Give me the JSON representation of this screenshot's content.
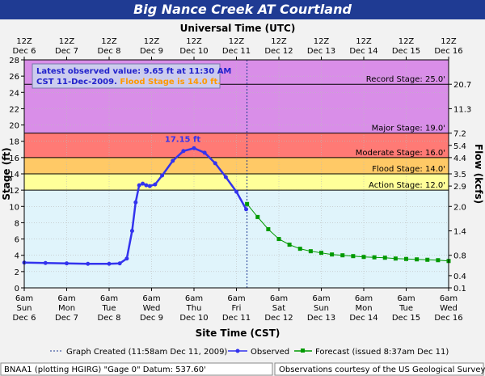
{
  "title": "Big Nance Creek  AT Courtland",
  "chart_data": {
    "type": "line",
    "top_axis": {
      "label": "Universal Time (UTC)",
      "ticks": [
        {
          "x": "2009-12-06T12:00Z",
          "line1": "12Z",
          "line2": "Dec 6"
        },
        {
          "x": "2009-12-07T12:00Z",
          "line1": "12Z",
          "line2": "Dec 7"
        },
        {
          "x": "2009-12-08T12:00Z",
          "line1": "12Z",
          "line2": "Dec 8"
        },
        {
          "x": "2009-12-09T12:00Z",
          "line1": "12Z",
          "line2": "Dec 9"
        },
        {
          "x": "2009-12-10T12:00Z",
          "line1": "12Z",
          "line2": "Dec 10"
        },
        {
          "x": "2009-12-11T12:00Z",
          "line1": "12Z",
          "line2": "Dec 11"
        },
        {
          "x": "2009-12-12T12:00Z",
          "line1": "12Z",
          "line2": "Dec 12"
        },
        {
          "x": "2009-12-13T12:00Z",
          "line1": "12Z",
          "line2": "Dec 13"
        },
        {
          "x": "2009-12-14T12:00Z",
          "line1": "12Z",
          "line2": "Dec 14"
        },
        {
          "x": "2009-12-15T12:00Z",
          "line1": "12Z",
          "line2": "Dec 15"
        },
        {
          "x": "2009-12-16T12:00Z",
          "line1": "12Z",
          "line2": "Dec 16"
        }
      ]
    },
    "bottom_axis": {
      "label": "Site Time (CST)",
      "ticks": [
        {
          "x": "2009-12-06 06:00",
          "line1": "6am",
          "line2": "Sun",
          "line3": "Dec 6"
        },
        {
          "x": "2009-12-07 06:00",
          "line1": "6am",
          "line2": "Mon",
          "line3": "Dec 7"
        },
        {
          "x": "2009-12-08 06:00",
          "line1": "6am",
          "line2": "Tue",
          "line3": "Dec 8"
        },
        {
          "x": "2009-12-09 06:00",
          "line1": "6am",
          "line2": "Wed",
          "line3": "Dec 9"
        },
        {
          "x": "2009-12-10 06:00",
          "line1": "6am",
          "line2": "Thu",
          "line3": "Dec 10"
        },
        {
          "x": "2009-12-11 06:00",
          "line1": "6am",
          "line2": "Fri",
          "line3": "Dec 11"
        },
        {
          "x": "2009-12-12 06:00",
          "line1": "6am",
          "line2": "Sat",
          "line3": "Dec 12"
        },
        {
          "x": "2009-12-13 06:00",
          "line1": "6am",
          "line2": "Sun",
          "line3": "Dec 13"
        },
        {
          "x": "2009-12-14 06:00",
          "line1": "6am",
          "line2": "Mon",
          "line3": "Dec 14"
        },
        {
          "x": "2009-12-15 06:00",
          "line1": "6am",
          "line2": "Tue",
          "line3": "Dec 15"
        },
        {
          "x": "2009-12-16 06:00",
          "line1": "6am",
          "line2": "Wed",
          "line3": "Dec 16"
        }
      ]
    },
    "xlim": [
      "2009-12-06 06:00",
      "2009-12-16 06:00"
    ],
    "y_left": {
      "label": "Stage (ft)",
      "ylim": [
        0,
        28
      ],
      "ticks": [
        0,
        2,
        4,
        6,
        8,
        10,
        12,
        14,
        16,
        18,
        20,
        22,
        24,
        26,
        28
      ]
    },
    "y_right": {
      "label": "Flow (kcfs)",
      "ticks": [
        {
          "stage": 25,
          "label": "20.7"
        },
        {
          "stage": 22,
          "label": "11.3"
        },
        {
          "stage": 19,
          "label": "7.2"
        },
        {
          "stage": 17.5,
          "label": "5.4"
        },
        {
          "stage": 16,
          "label": "4.4"
        },
        {
          "stage": 14,
          "label": "3.5"
        },
        {
          "stage": 12.5,
          "label": "2.9"
        },
        {
          "stage": 10,
          "label": "2.0"
        },
        {
          "stage": 7,
          "label": "1.4"
        },
        {
          "stage": 4,
          "label": "0.8"
        },
        {
          "stage": 1.5,
          "label": "0.4"
        },
        {
          "stage": 0,
          "label": "0.1"
        }
      ]
    },
    "grid": true,
    "flood_categories": [
      {
        "from": 0,
        "to": 12,
        "color": "#e0f4fb"
      },
      {
        "from": 12,
        "to": 14,
        "color": "#ffff99"
      },
      {
        "from": 14,
        "to": 16,
        "color": "#ffc966"
      },
      {
        "from": 16,
        "to": 19,
        "color": "#ff7a75"
      },
      {
        "from": 19,
        "to": 28,
        "color": "#d98ee8"
      }
    ],
    "stage_lines": [
      {
        "stage": 25,
        "label": "Record Stage: 25.0'"
      },
      {
        "stage": 19,
        "label": "Major Stage: 19.0'"
      },
      {
        "stage": 16,
        "label": "Moderate Stage: 16.0'"
      },
      {
        "stage": 14,
        "label": "Flood Stage: 14.0'"
      },
      {
        "stage": 12,
        "label": "Action Stage: 12.0'"
      }
    ],
    "series": [
      {
        "name": "Observed",
        "color": "#3333ee",
        "x": [
          "2009-12-06 06:00",
          "2009-12-06 18:00",
          "2009-12-07 06:00",
          "2009-12-07 18:00",
          "2009-12-08 06:00",
          "2009-12-08 12:00",
          "2009-12-08 16:00",
          "2009-12-08 19:00",
          "2009-12-08 21:00",
          "2009-12-08 23:00",
          "2009-12-09 01:00",
          "2009-12-09 03:00",
          "2009-12-09 05:00",
          "2009-12-09 08:00",
          "2009-12-09 12:00",
          "2009-12-09 18:00",
          "2009-12-10 00:00",
          "2009-12-10 06:00",
          "2009-12-10 12:00",
          "2009-12-10 18:00",
          "2009-12-11 00:00",
          "2009-12-11 06:00",
          "2009-12-11 11:30"
        ],
        "y": [
          3.1,
          3.05,
          3.0,
          2.95,
          2.95,
          3.0,
          3.6,
          7.0,
          10.5,
          12.6,
          12.8,
          12.6,
          12.5,
          12.7,
          13.8,
          15.6,
          16.8,
          17.15,
          16.6,
          15.3,
          13.6,
          11.8,
          9.65
        ]
      },
      {
        "name": "Forecast (issued 8:37am Dec 11)",
        "color": "#009900",
        "x": [
          "2009-12-11 12:00",
          "2009-12-11 18:00",
          "2009-12-12 00:00",
          "2009-12-12 06:00",
          "2009-12-12 12:00",
          "2009-12-12 18:00",
          "2009-12-13 00:00",
          "2009-12-13 06:00",
          "2009-12-13 12:00",
          "2009-12-13 18:00",
          "2009-12-14 00:00",
          "2009-12-14 06:00",
          "2009-12-14 12:00",
          "2009-12-14 18:00",
          "2009-12-15 00:00",
          "2009-12-15 06:00",
          "2009-12-15 12:00",
          "2009-12-15 18:00",
          "2009-12-16 00:00",
          "2009-12-16 06:00"
        ],
        "y": [
          10.3,
          8.7,
          7.2,
          6.0,
          5.3,
          4.8,
          4.5,
          4.3,
          4.1,
          4.0,
          3.9,
          3.8,
          3.75,
          3.7,
          3.6,
          3.55,
          3.5,
          3.45,
          3.4,
          3.3
        ]
      }
    ],
    "graph_created": {
      "x": "2009-12-11 11:58",
      "label": "Graph Created (11:58am Dec 11, 2009)"
    },
    "peak_label": {
      "x": "2009-12-10 06:00",
      "y": 17.15,
      "text": "17.15 ft"
    },
    "annotation": {
      "line1": "Latest observed value: 9.65 ft at 11:30 AM",
      "line2_a": "CST 11-Dec-2009.",
      "line2_b": "Flood Stage is 14.0 ft."
    },
    "legend": {
      "placement": "bottom",
      "graph_created": "Graph Created (11:58am Dec 11, 2009)",
      "observed": "Observed",
      "forecast": "Forecast (issued 8:37am Dec 11)"
    }
  },
  "footer": {
    "left": "BNAA1 (plotting HGIRG)  \"Gage 0\" Datum: 537.60'",
    "right": "Observations courtesy of the  US Geological Survey"
  },
  "colors": {
    "title_bg": "#1f3b93",
    "observed": "#3333ee",
    "forecast": "#009900",
    "flood_text": "#ff9900"
  }
}
